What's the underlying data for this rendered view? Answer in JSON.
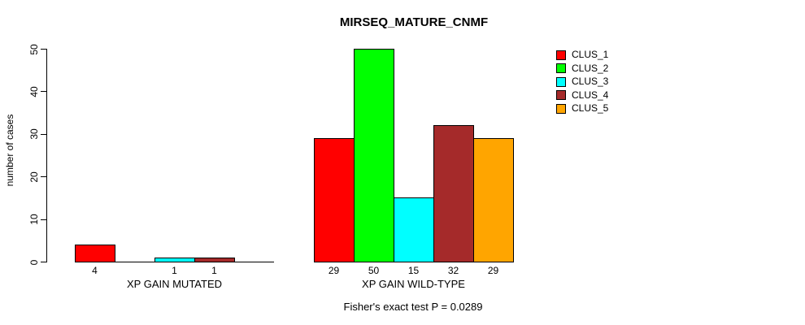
{
  "chart_data": {
    "type": "bar",
    "title": "MIRSEQ_MATURE_CNMF",
    "ylabel": "number of cases",
    "xlabel": "",
    "ylim": [
      0,
      50
    ],
    "yticks": [
      0,
      10,
      20,
      30,
      40,
      50
    ],
    "grid": false,
    "legend_position": "top-right",
    "series": [
      "CLUS_1",
      "CLUS_2",
      "CLUS_3",
      "CLUS_4",
      "CLUS_5"
    ],
    "colors": [
      "#FF0000",
      "#00FF00",
      "#00FFFF",
      "#A52A2A",
      "#FFA500"
    ],
    "groups": [
      {
        "label": "XP GAIN MUTATED",
        "values": [
          4,
          0,
          1,
          1,
          0
        ]
      },
      {
        "label": "XP GAIN WILD-TYPE",
        "values": [
          29,
          50,
          15,
          32,
          29
        ]
      }
    ],
    "bar_value_labels": "shown under each non-zero bar",
    "annotation": "Fisher's exact test P = 0.0289"
  }
}
